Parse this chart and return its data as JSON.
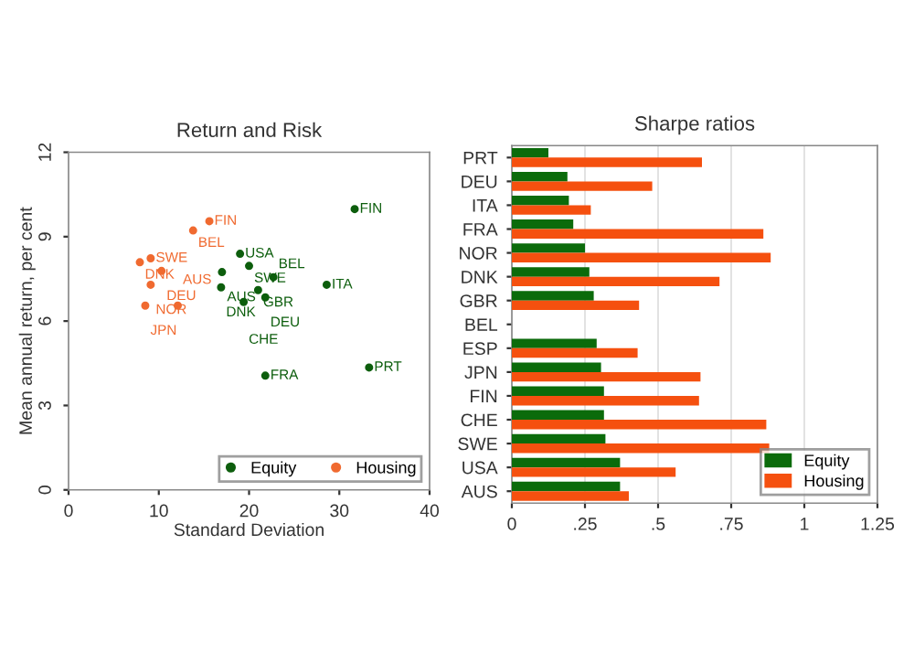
{
  "chart_data": [
    {
      "type": "scatter",
      "title": "Return and Risk",
      "xlabel": "Standard Deviation",
      "ylabel": "Mean annual return, per cent",
      "xlim": [
        0,
        40
      ],
      "xticks": [
        0,
        10,
        20,
        30,
        40
      ],
      "ylim": [
        0,
        12
      ],
      "yticks": [
        0,
        3,
        6,
        9,
        12
      ],
      "grid": false,
      "legend": "bottom right",
      "marker": "circle",
      "series": [
        {
          "name": "Equity",
          "color": "#0d5e0d",
          "x": [
            31.7,
            19.0,
            20.0,
            17.0,
            22.7,
            28.6,
            16.9,
            21.0,
            21.8,
            19.4,
            21.8,
            33.3
          ],
          "values": [
            9.98,
            8.39,
            7.96,
            7.74,
            7.56,
            7.29,
            7.2,
            7.1,
            6.84,
            6.68,
            4.06,
            4.35
          ]
        },
        {
          "name": "Housing",
          "color": "#f06a30",
          "x": [
            15.6,
            13.8,
            9.1,
            7.9,
            10.3,
            9.1,
            8.5,
            12.1
          ],
          "values": [
            9.55,
            9.22,
            8.23,
            8.09,
            7.78,
            7.29,
            6.55,
            6.55
          ]
        }
      ],
      "annotations": [
        {
          "text": "FIN",
          "x": 31.7,
          "y": 9.98
        },
        {
          "text": "USA",
          "x": 19.0,
          "y": 8.39
        },
        {
          "text": "SWE",
          "x": 20.0,
          "y": 7.96
        },
        {
          "text": "AUS",
          "x": 17.0,
          "y": 7.74
        },
        {
          "text": "BEL",
          "x": 22.7,
          "y": 7.56
        },
        {
          "text": "ITA",
          "x": 28.6,
          "y": 7.29
        },
        {
          "text": "DNK",
          "x": 16.9,
          "y": 7.2
        },
        {
          "text": "GBR",
          "x": 21.0,
          "y": 7.1
        },
        {
          "text": "DEU",
          "x": 21.8,
          "y": 6.84
        },
        {
          "text": "CHE",
          "x": 19.4,
          "y": 6.68
        },
        {
          "text": "FRA",
          "x": 21.8,
          "y": 4.06
        },
        {
          "text": "PRT",
          "x": 33.3,
          "y": 4.35
        },
        {
          "text": "FIN",
          "x": 15.6,
          "y": 9.55
        },
        {
          "text": "BEL",
          "x": 13.8,
          "y": 9.22
        },
        {
          "text": "SWE",
          "x": 9.1,
          "y": 8.23
        },
        {
          "text": "DNK",
          "x": 7.9,
          "y": 8.09
        },
        {
          "text": "DEU",
          "x": 10.3,
          "y": 7.78
        },
        {
          "text": "NOR",
          "x": 9.1,
          "y": 7.29
        },
        {
          "text": "JPN",
          "x": 8.5,
          "y": 6.55
        },
        {
          "text": "AUS",
          "x": 12.1,
          "y": 6.55
        }
      ]
    },
    {
      "type": "bar",
      "orientation": "horizontal",
      "title": "Sharpe ratios",
      "categories": [
        "PRT",
        "DEU",
        "ITA",
        "FRA",
        "NOR",
        "DNK",
        "GBR",
        "BEL",
        "ESP",
        "JPN",
        "FIN",
        "CHE",
        "SWE",
        "USA",
        "AUS"
      ],
      "xlim": [
        0,
        1.25
      ],
      "xticks": [
        0,
        {
          "value": 0.25,
          "label": ".25"
        },
        {
          "value": 0.5,
          "label": ".5"
        },
        {
          "value": 0.75,
          "label": ".75"
        },
        1,
        1.25
      ],
      "grid": "x",
      "legend": "bottom right",
      "series": [
        {
          "name": "Equity",
          "color": "#0b6b0b",
          "values": [
            0.125,
            0.19,
            0.195,
            0.21,
            0.25,
            0.265,
            0.28,
            null,
            0.29,
            0.305,
            0.315,
            0.315,
            0.32,
            0.37,
            0.37
          ]
        },
        {
          "name": "Housing",
          "color": "#f5500f",
          "values": [
            0.65,
            0.48,
            0.27,
            0.86,
            0.885,
            0.71,
            0.435,
            null,
            0.43,
            0.645,
            0.64,
            0.87,
            0.88,
            0.56,
            0.4
          ]
        }
      ]
    }
  ]
}
